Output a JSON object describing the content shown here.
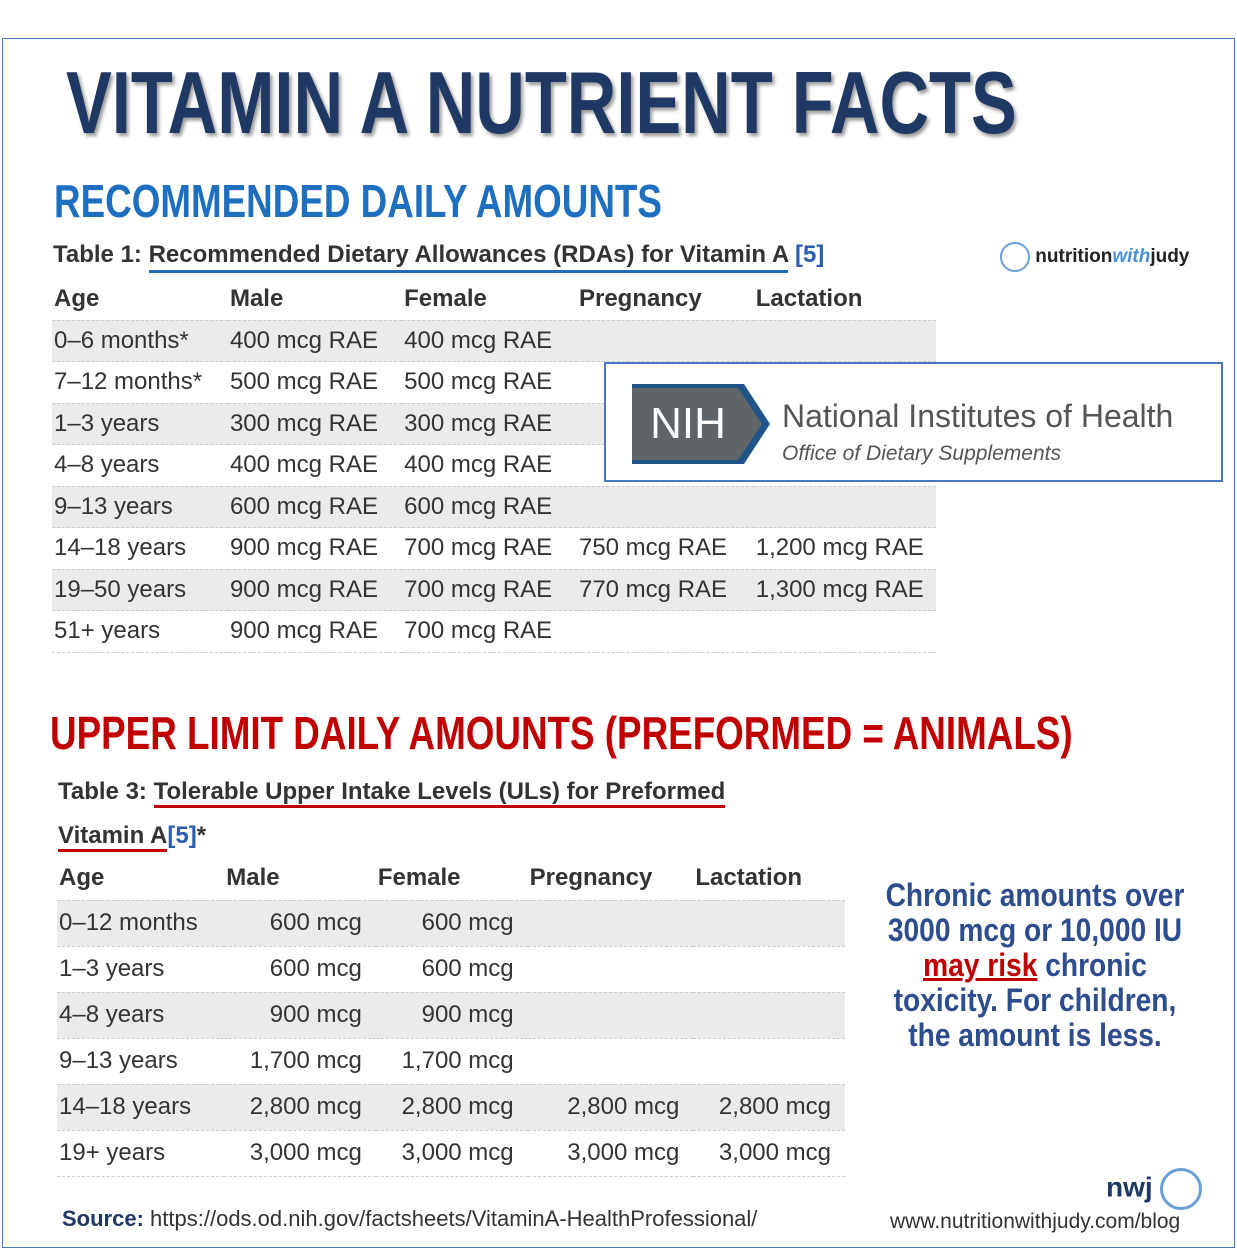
{
  "title": "VITAMIN A NUTRIENT FACTS",
  "section1": {
    "heading": "RECOMMENDED DAILY AMOUNTS"
  },
  "table1": {
    "label": "Table 1:",
    "caption": "Recommended Dietary Allowances (RDAs) for Vitamin A",
    "ref": "[5]",
    "headers": [
      "Age",
      "Male",
      "Female",
      "Pregnancy",
      "Lactation"
    ],
    "rows": [
      [
        "0–6 months*",
        "400 mcg RAE",
        "400 mcg RAE",
        null,
        null
      ],
      [
        "7–12 months*",
        "500 mcg RAE",
        "500 mcg RAE",
        null,
        null
      ],
      [
        "1–3 years",
        "300 mcg RAE",
        "300 mcg RAE",
        null,
        null
      ],
      [
        "4–8 years",
        "400 mcg RAE",
        "400 mcg RAE",
        null,
        null
      ],
      [
        "9–13 years",
        "600 mcg RAE",
        "600 mcg RAE",
        null,
        null
      ],
      [
        "14–18 years",
        "900 mcg RAE",
        "700 mcg RAE",
        "750 mcg RAE",
        "1,200 mcg RAE"
      ],
      [
        "19–50 years",
        "900 mcg RAE",
        "700 mcg RAE",
        "770 mcg RAE",
        "1,300 mcg RAE"
      ],
      [
        "51+ years",
        "900 mcg RAE",
        "700 mcg RAE",
        null,
        null
      ]
    ]
  },
  "logo": {
    "part1": "nutrition",
    "part2": "with",
    "part3": "judy"
  },
  "nih": {
    "abbr": "NIH",
    "name": "National Institutes of Health",
    "office": "Office of Dietary Supplements"
  },
  "section2": {
    "heading": "UPPER LIMIT DAILY AMOUNTS (PREFORMED = ANIMALS)"
  },
  "table3": {
    "label": "Table 3:",
    "caption_line1": "Tolerable Upper Intake Levels (ULs) for Preformed",
    "caption_line2": "Vitamin A",
    "ref": "[5]",
    "mark": "*",
    "headers": [
      "Age",
      "Male",
      "Female",
      "Pregnancy",
      "Lactation"
    ],
    "rows": [
      [
        "0–12 months",
        "600 mcg",
        "600 mcg",
        null,
        null
      ],
      [
        "1–3 years",
        "600 mcg",
        "600 mcg",
        null,
        null
      ],
      [
        "4–8 years",
        "900 mcg",
        "900 mcg",
        null,
        null
      ],
      [
        "9–13 years",
        "1,700 mcg",
        "1,700 mcg",
        null,
        null
      ],
      [
        "14–18 years",
        "2,800 mcg",
        "2,800 mcg",
        "2,800 mcg",
        "2,800 mcg"
      ],
      [
        "19+ years",
        "3,000 mcg",
        "3,000 mcg",
        "3,000 mcg",
        "3,000 mcg"
      ]
    ]
  },
  "note": {
    "line1": "Chronic amounts over",
    "line2": "3000 mcg or 10,000 IU",
    "highlight": "may risk",
    "line3_rest": "chronic",
    "line4": "toxicity. For children,",
    "line5": "the amount is less."
  },
  "source": {
    "label": "Source:",
    "url": "https://ods.od.nih.gov/factsheets/VitaminA-HealthProfessional/"
  },
  "footer": {
    "brand": "nwj",
    "url": "www.nutritionwithjudy.com/blog"
  }
}
